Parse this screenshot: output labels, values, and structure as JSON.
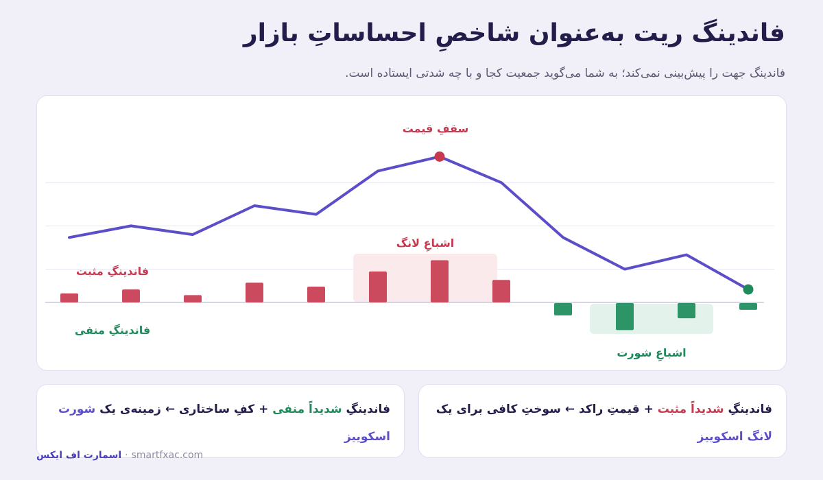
{
  "header": {
    "title": "فاندینگ ریت به‌عنوان شاخصِ احساساتِ بازار",
    "subtitle": "فاندینگ جهت را پیش‌بینی نمی‌کند؛ به شما می‌گوید جمعیت کجا و با چه شدتی ایستاده است."
  },
  "chart_data": {
    "type": "line",
    "series": [
      {
        "kind": "line",
        "color": "#5b4ec8",
        "values": [
          4.6,
          5.0,
          4.7,
          5.7,
          5.4,
          6.9,
          7.4,
          6.5,
          4.6,
          3.5,
          4.0,
          2.8
        ]
      },
      {
        "kind": "bar",
        "values": [
          0.16,
          0.23,
          0.13,
          0.35,
          0.28,
          0.55,
          0.75,
          0.4,
          -0.22,
          -0.48,
          -0.27,
          -0.12
        ]
      }
    ],
    "price_ylim": [
      0,
      9
    ],
    "funding_ylim": [
      -0.6,
      0.9
    ],
    "colors": {
      "positive": "#cc4a5e",
      "negative": "#2c9466",
      "line": "#5b4ec8",
      "top_marker": "#c8384f",
      "end_marker": "#1f8a5b"
    },
    "annotations": {
      "price_top": "سقفِ قیمت",
      "long_saturation": "اشباعِ لانگ",
      "short_saturation": "اشباعِ شورت",
      "positive_funding": "فاندینگِ مثبت",
      "negative_funding": "فاندینگِ منفی"
    },
    "grid": true
  },
  "notes": {
    "right": {
      "p1": "فاندینگِ ",
      "hl1": "شدیداً مثبت",
      "p2": " + قیمتِ راکد ← سوختِ کافی برای یک ",
      "hl2": "لانگ اسکوییز"
    },
    "left": {
      "p1": "فاندینگِ ",
      "hl1": "شدیداً منفی",
      "p2": " + کفِ ساختاری ← زمینه‌ی یک ",
      "hl2": "شورت اسکوییز"
    }
  },
  "footer": {
    "brand": "اسمارت اف ایکس",
    "site": "smartfxac.com"
  }
}
